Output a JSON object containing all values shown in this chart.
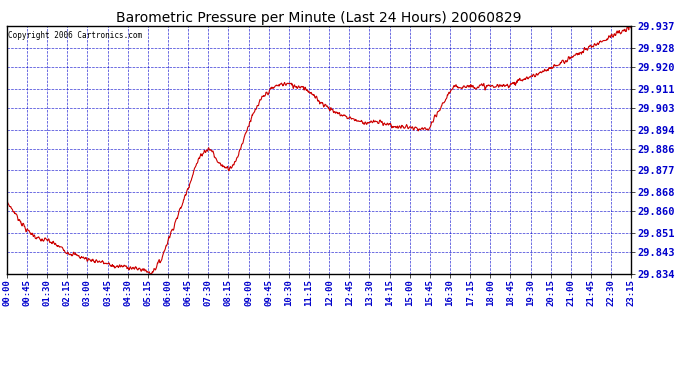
{
  "title": "Barometric Pressure per Minute (Last 24 Hours) 20060829",
  "copyright_text": "Copyright 2006 Cartronics.com",
  "line_color": "#cc0000",
  "background_color": "#ffffff",
  "plot_bg_color": "#ffffff",
  "grid_color": "#0000cc",
  "axis_label_color": "#0000cc",
  "title_color": "#000000",
  "yticks": [
    29.834,
    29.843,
    29.851,
    29.86,
    29.868,
    29.877,
    29.886,
    29.894,
    29.903,
    29.911,
    29.92,
    29.928,
    29.937
  ],
  "xtick_labels": [
    "00:00",
    "00:45",
    "01:30",
    "02:15",
    "03:00",
    "03:45",
    "04:30",
    "05:15",
    "06:00",
    "06:45",
    "07:30",
    "08:15",
    "09:00",
    "09:45",
    "10:30",
    "11:15",
    "12:00",
    "12:45",
    "13:30",
    "14:15",
    "15:00",
    "15:45",
    "16:30",
    "17:15",
    "18:00",
    "18:45",
    "19:30",
    "20:15",
    "21:00",
    "21:45",
    "22:30",
    "23:15"
  ],
  "ylim_min": 29.834,
  "ylim_max": 29.937,
  "ctrl_x": [
    0,
    0.75,
    1.25,
    1.5,
    2.0,
    2.25,
    2.5,
    3.0,
    3.5,
    3.75,
    4.0,
    4.25,
    4.5,
    4.75,
    5.0,
    5.25,
    5.33,
    5.5,
    5.75,
    6.0,
    6.25,
    6.5,
    6.75,
    7.0,
    7.25,
    7.5,
    7.67,
    7.75,
    8.0,
    8.25,
    8.5,
    8.75,
    9.0,
    9.25,
    9.5,
    9.75,
    10.0,
    10.25,
    10.5,
    10.75,
    11.0,
    11.25,
    11.5,
    11.75,
    12.0,
    12.25,
    12.5,
    12.75,
    13.0,
    13.25,
    13.5,
    13.75,
    14.0,
    14.25,
    14.5,
    14.75,
    15.0,
    15.25,
    15.5,
    15.67,
    15.75,
    16.0,
    16.25,
    16.5,
    16.75,
    17.0,
    17.25,
    17.5,
    18.0,
    18.5,
    19.0,
    19.5,
    20.0,
    20.5,
    21.0,
    21.5,
    22.0,
    22.5,
    23.0,
    23.25
  ],
  "ctrl_y": [
    29.864,
    29.852,
    29.848,
    29.848,
    29.845,
    29.843,
    29.842,
    29.84,
    29.839,
    29.838,
    29.837,
    29.837,
    29.837,
    29.836,
    29.836,
    29.835,
    29.834,
    29.836,
    29.84,
    29.848,
    29.855,
    29.862,
    29.87,
    29.878,
    29.884,
    29.886,
    29.885,
    29.882,
    29.879,
    29.878,
    29.88,
    29.888,
    29.896,
    29.902,
    29.907,
    29.91,
    29.912,
    29.913,
    29.913,
    29.912,
    29.912,
    29.91,
    29.907,
    29.905,
    29.903,
    29.901,
    29.9,
    29.899,
    29.898,
    29.897,
    29.897,
    29.897,
    29.897,
    29.896,
    29.895,
    29.895,
    29.895,
    29.894,
    29.894,
    29.894,
    29.895,
    29.9,
    29.905,
    29.91,
    29.912,
    29.912,
    29.912,
    29.912,
    29.912,
    29.912,
    29.914,
    29.916,
    29.918,
    29.921,
    29.924,
    29.927,
    29.93,
    29.933,
    29.935,
    29.937
  ]
}
